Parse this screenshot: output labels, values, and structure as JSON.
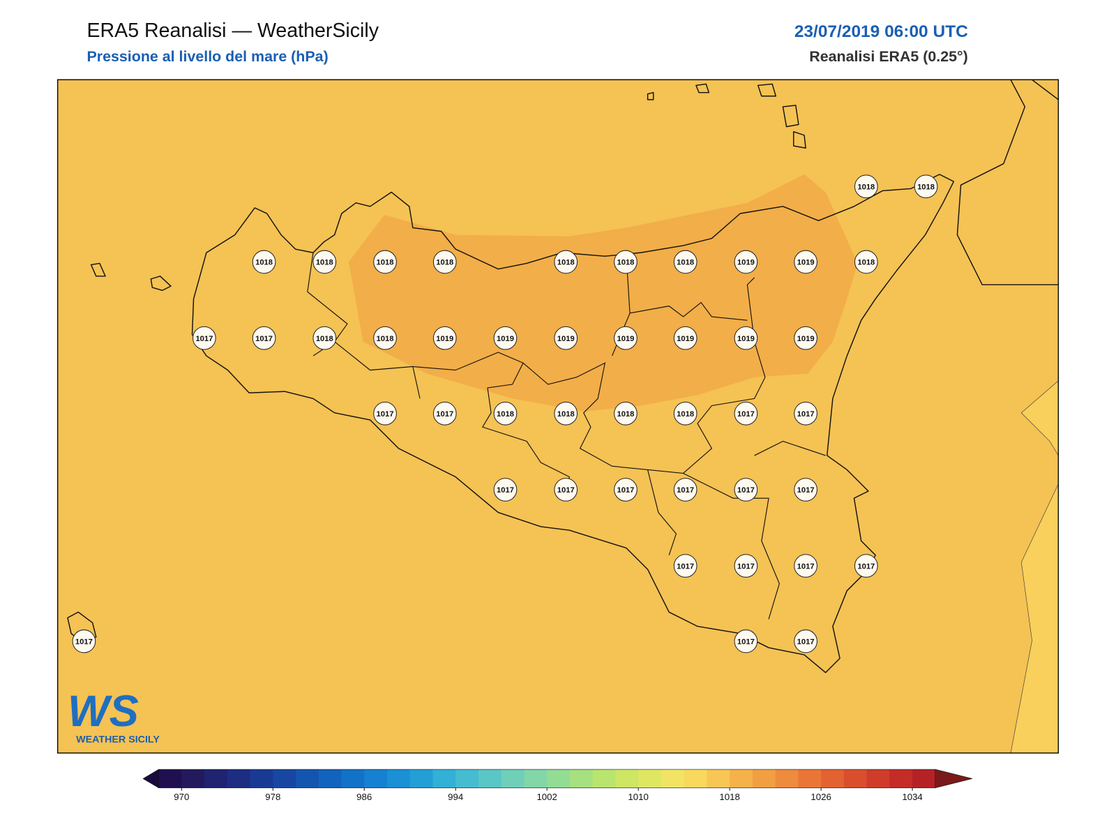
{
  "header": {
    "title": "ERA5 Reanalisi — WeatherSicily",
    "subtitle": "Pressione al livello del mare (hPa)",
    "date": "23/07/2019 06:00 UTC",
    "source": "Reanalisi ERA5 (0.25°)"
  },
  "stations": [
    1018,
    1018,
    1018,
    1018,
    1018,
    1018,
    1018,
    1019,
    1019,
    1018,
    1018,
    1018,
    1017,
    1017,
    1018,
    1018,
    1019,
    1019,
    1019,
    1019,
    1019,
    1019,
    1019,
    1017,
    1017,
    1018,
    1018,
    1018,
    1018,
    1017,
    1017,
    1017,
    1017,
    1017,
    1017,
    1017,
    1017,
    1017,
    1017,
    1017,
    1017,
    1017,
    1017,
    1017
  ],
  "colorbar": {
    "lim": [
      968,
      1036
    ],
    "ticks": [
      970,
      978,
      986,
      994,
      1002,
      1010,
      1018,
      1026,
      1034
    ],
    "colors": [
      "#201050",
      "#231a5e",
      "#1f2370",
      "#1c2d82",
      "#193a93",
      "#1747a2",
      "#1455b0",
      "#1263bd",
      "#1272c8",
      "#1581d0",
      "#1b90d5",
      "#239fd6",
      "#32b0d5",
      "#45bcd0",
      "#5ac6c6",
      "#6fcfb9",
      "#82d6a8",
      "#93dc94",
      "#a6e080",
      "#b9e46e",
      "#cde664",
      "#dfe762",
      "#f1e465",
      "#f9d95d",
      "#f8c655",
      "#f5b24b",
      "#f29f44",
      "#ee8b3d",
      "#e97637",
      "#e26231",
      "#d94f2d",
      "#cf3c2a",
      "#c42c28",
      "#b52225"
    ],
    "under_color": "#1a0a40",
    "over_color": "#7a1a1a"
  },
  "logo": {
    "mark": "WS",
    "text": "WEATHER SICILY"
  }
}
